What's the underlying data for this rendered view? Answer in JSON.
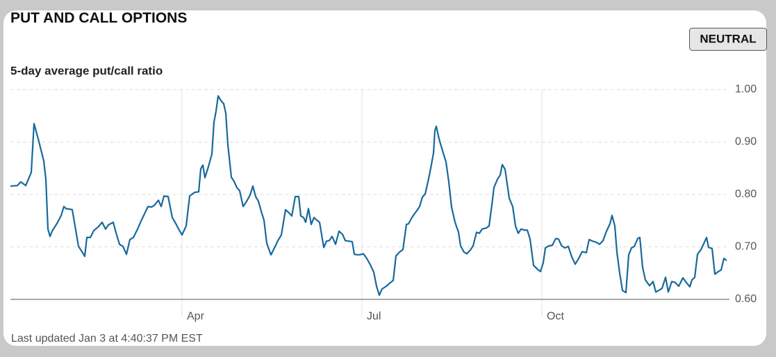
{
  "header": {
    "title": "PUT AND CALL OPTIONS",
    "badge": "NEUTRAL"
  },
  "chart_data": {
    "type": "line",
    "subtitle": "5-day average put/call ratio",
    "color": "#17699a",
    "xlim": [
      0,
      258.75
    ],
    "xticks": [
      {
        "value": 61.75,
        "label": "Apr"
      },
      {
        "value": 126.5,
        "label": "Jul"
      },
      {
        "value": 191.25,
        "label": "Oct"
      }
    ],
    "ylim": [
      0.6,
      1.0
    ],
    "yticks": [
      {
        "value": 0.6,
        "label": "0.60"
      },
      {
        "value": 0.7,
        "label": "0.70"
      },
      {
        "value": 0.8,
        "label": "0.80"
      },
      {
        "value": 0.9,
        "label": "0.90"
      },
      {
        "value": 1.0,
        "label": "1.00"
      }
    ],
    "grid": true,
    "x": [
      0,
      2.5,
      3.75,
      5.5,
      7.5,
      8.5,
      10,
      12,
      12.75,
      13.5,
      14.25,
      15,
      17,
      18.25,
      19.25,
      20,
      21.25,
      22.25,
      23.25,
      24.5,
      25.75,
      26.75,
      27.5,
      28.75,
      30,
      31.75,
      33,
      34.25,
      35.25,
      37,
      38,
      39.25,
      40.5,
      41.75,
      43,
      44.25,
      45.75,
      47.25,
      48.25,
      49.5,
      50.75,
      51.75,
      53.25,
      54.25,
      55.25,
      56.75,
      58.25,
      59.25,
      60.75,
      61.75,
      63.25,
      64.5,
      66.25,
      67.75,
      68.5,
      69.25,
      70,
      71.25,
      72.5,
      73.25,
      74,
      74.75,
      75.75,
      76.75,
      77.5,
      78.25,
      79.5,
      80.5,
      81.5,
      82.5,
      83.75,
      85,
      86.25,
      87.25,
      88.25,
      89.25,
      90.25,
      91.25,
      92.25,
      93.75,
      95,
      96.25,
      97.5,
      99,
      100.25,
      101.25,
      102.5,
      103.75,
      104.5,
      105.5,
      106.25,
      107.25,
      108.25,
      109.25,
      110.25,
      111.25,
      112.75,
      113.75,
      114.75,
      115.75,
      117,
      118.25,
      119.5,
      120.5,
      121.75,
      123,
      123.75,
      124.75,
      125.75,
      127,
      128.25,
      129.5,
      130.75,
      131.75,
      132.75,
      133.75,
      135.25,
      136.75,
      137.75,
      138.75,
      140,
      141.25,
      142.5,
      143.25,
      144.25,
      145.5,
      146.25,
      147.25,
      148.25,
      149.25,
      150.25,
      151.25,
      152.25,
      152.75,
      153.25,
      154.25,
      155.75,
      156.75,
      157.75,
      158.75,
      160,
      161.25,
      162,
      163.25,
      164.25,
      165.5,
      166.5,
      167.75,
      168.75,
      169.75,
      171.25,
      172.25,
      173.25,
      174,
      175.25,
      176.25,
      177,
      178,
      179.5,
      180.75,
      181.75,
      182.75,
      183.75,
      185,
      186,
      187,
      188.25,
      189.75,
      190.75,
      191.75,
      192.5,
      193.75,
      195,
      196.25,
      197.25,
      198.25,
      199.5,
      200.75,
      202,
      203.25,
      204.5,
      205.75,
      207.25,
      208.25,
      209.5,
      210.75,
      212,
      213.25,
      214.5,
      215.75,
      216.5,
      217.5,
      218.25,
      219.25,
      220.25,
      221.5,
      222.5,
      223.5,
      224.5,
      225.75,
      226.5,
      227.5,
      228.5,
      230,
      231.25,
      232.25,
      233.25,
      234.5,
      235.75,
      236.75,
      238,
      239.25,
      240.5,
      242,
      243.25,
      244.5,
      245.25,
      246.25,
      247.25,
      248.5,
      249.5,
      250.5,
      251.25,
      252.5,
      253.5,
      254.75,
      255.75,
      256.75,
      257.75
    ],
    "values": [
      0.816,
      0.817,
      0.824,
      0.817,
      0.842,
      0.935,
      0.906,
      0.864,
      0.829,
      0.734,
      0.72,
      0.73,
      0.747,
      0.76,
      0.777,
      0.773,
      0.772,
      0.771,
      0.74,
      0.701,
      0.691,
      0.682,
      0.718,
      0.718,
      0.731,
      0.739,
      0.747,
      0.734,
      0.742,
      0.747,
      0.727,
      0.705,
      0.701,
      0.686,
      0.714,
      0.718,
      0.734,
      0.752,
      0.763,
      0.777,
      0.776,
      0.779,
      0.789,
      0.777,
      0.797,
      0.796,
      0.756,
      0.747,
      0.732,
      0.723,
      0.74,
      0.797,
      0.804,
      0.805,
      0.849,
      0.856,
      0.832,
      0.853,
      0.877,
      0.938,
      0.959,
      0.988,
      0.979,
      0.973,
      0.955,
      0.895,
      0.833,
      0.825,
      0.813,
      0.807,
      0.777,
      0.787,
      0.799,
      0.816,
      0.796,
      0.787,
      0.768,
      0.751,
      0.707,
      0.685,
      0.698,
      0.712,
      0.723,
      0.771,
      0.765,
      0.759,
      0.796,
      0.796,
      0.759,
      0.756,
      0.747,
      0.773,
      0.743,
      0.756,
      0.751,
      0.747,
      0.699,
      0.711,
      0.712,
      0.72,
      0.705,
      0.73,
      0.724,
      0.712,
      0.711,
      0.71,
      0.686,
      0.685,
      0.685,
      0.687,
      0.678,
      0.666,
      0.652,
      0.625,
      0.608,
      0.62,
      0.625,
      0.632,
      0.636,
      0.683,
      0.69,
      0.695,
      0.743,
      0.744,
      0.754,
      0.764,
      0.769,
      0.777,
      0.795,
      0.801,
      0.824,
      0.85,
      0.879,
      0.922,
      0.93,
      0.906,
      0.879,
      0.862,
      0.824,
      0.776,
      0.747,
      0.728,
      0.702,
      0.69,
      0.687,
      0.694,
      0.702,
      0.728,
      0.726,
      0.734,
      0.736,
      0.74,
      0.78,
      0.813,
      0.829,
      0.837,
      0.857,
      0.848,
      0.793,
      0.777,
      0.74,
      0.726,
      0.734,
      0.732,
      0.732,
      0.715,
      0.665,
      0.657,
      0.653,
      0.67,
      0.698,
      0.702,
      0.703,
      0.716,
      0.715,
      0.703,
      0.698,
      0.701,
      0.681,
      0.667,
      0.678,
      0.691,
      0.689,
      0.714,
      0.711,
      0.709,
      0.705,
      0.712,
      0.73,
      0.744,
      0.76,
      0.74,
      0.69,
      0.65,
      0.617,
      0.613,
      0.685,
      0.698,
      0.701,
      0.716,
      0.718,
      0.661,
      0.637,
      0.626,
      0.634,
      0.614,
      0.617,
      0.621,
      0.642,
      0.614,
      0.634,
      0.632,
      0.625,
      0.641,
      0.632,
      0.624,
      0.637,
      0.642,
      0.686,
      0.695,
      0.706,
      0.718,
      0.699,
      0.697,
      0.648,
      0.653,
      0.656,
      0.678,
      0.674
    ]
  },
  "footer": {
    "text": "Last updated Jan 3 at 4:40:37 PM EST"
  }
}
